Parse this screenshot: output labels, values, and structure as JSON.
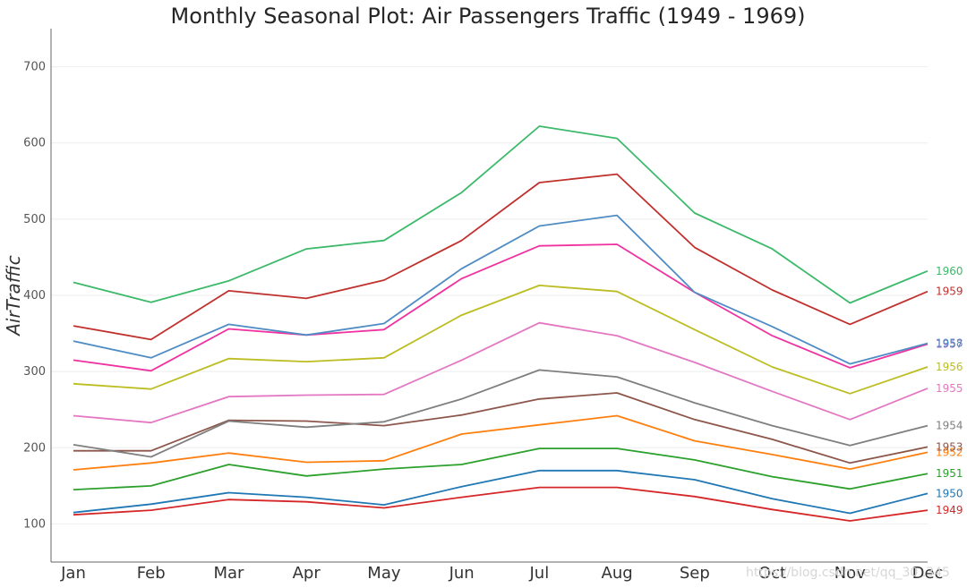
{
  "chart_data": {
    "type": "line",
    "title": "Monthly Seasonal Plot: Air Passengers Traffic (1949 - 1969)",
    "xlabel": "",
    "ylabel": "AirTraffic",
    "categories": [
      "Jan",
      "Feb",
      "Mar",
      "Apr",
      "May",
      "Jun",
      "Jul",
      "Aug",
      "Sep",
      "Oct",
      "Nov",
      "Dec"
    ],
    "ylim": [
      50,
      750
    ],
    "yticks": [
      100,
      200,
      300,
      400,
      500,
      600,
      700
    ],
    "grid": true,
    "legend": "none",
    "series": [
      {
        "name": "1949",
        "color": "#d62728",
        "values": [
          112,
          118,
          132,
          129,
          121,
          135,
          148,
          148,
          136,
          119,
          104,
          118
        ]
      },
      {
        "name": "1950",
        "color": "#1f77b4",
        "values": [
          115,
          126,
          141,
          135,
          125,
          149,
          170,
          170,
          158,
          133,
          114,
          140
        ]
      },
      {
        "name": "1951",
        "color": "#2ca02c",
        "values": [
          145,
          150,
          178,
          163,
          172,
          178,
          199,
          199,
          184,
          162,
          146,
          166
        ]
      },
      {
        "name": "1952",
        "color": "#ff7f0e",
        "values": [
          171,
          180,
          193,
          181,
          183,
          218,
          230,
          242,
          209,
          191,
          172,
          194
        ]
      },
      {
        "name": "1953",
        "color": "#8c564b",
        "values": [
          196,
          196,
          236,
          235,
          229,
          243,
          264,
          272,
          237,
          211,
          180,
          201
        ]
      },
      {
        "name": "1954",
        "color": "#7f7f7f",
        "values": [
          204,
          188,
          235,
          227,
          234,
          264,
          302,
          293,
          259,
          229,
          203,
          229
        ]
      },
      {
        "name": "1955",
        "color": "#e377c2",
        "values": [
          242,
          233,
          267,
          269,
          270,
          315,
          364,
          347,
          312,
          274,
          237,
          278
        ]
      },
      {
        "name": "1956",
        "color": "#bcbd22",
        "values": [
          284,
          277,
          317,
          313,
          318,
          374,
          413,
          405,
          355,
          306,
          271,
          306
        ]
      },
      {
        "name": "1957",
        "color": "#f032a0",
        "values": [
          315,
          301,
          356,
          348,
          355,
          422,
          465,
          467,
          404,
          347,
          305,
          336
        ]
      },
      {
        "name": "1958",
        "color": "#4f8cc4",
        "values": [
          340,
          318,
          362,
          348,
          363,
          435,
          491,
          505,
          404,
          359,
          310,
          337
        ]
      },
      {
        "name": "1959",
        "color": "#c0312e",
        "values": [
          360,
          342,
          406,
          396,
          420,
          472,
          548,
          559,
          463,
          407,
          362,
          405
        ]
      },
      {
        "name": "1960",
        "color": "#3cb96a",
        "values": [
          417,
          391,
          419,
          461,
          472,
          535,
          622,
          606,
          508,
          461,
          390,
          432
        ]
      }
    ],
    "series_label_colors": {
      "1958": "#4f8cc4",
      "1957": "#9467bd"
    }
  },
  "watermark": {
    "text": "https://blog.csdn.net/qq_30..345"
  }
}
